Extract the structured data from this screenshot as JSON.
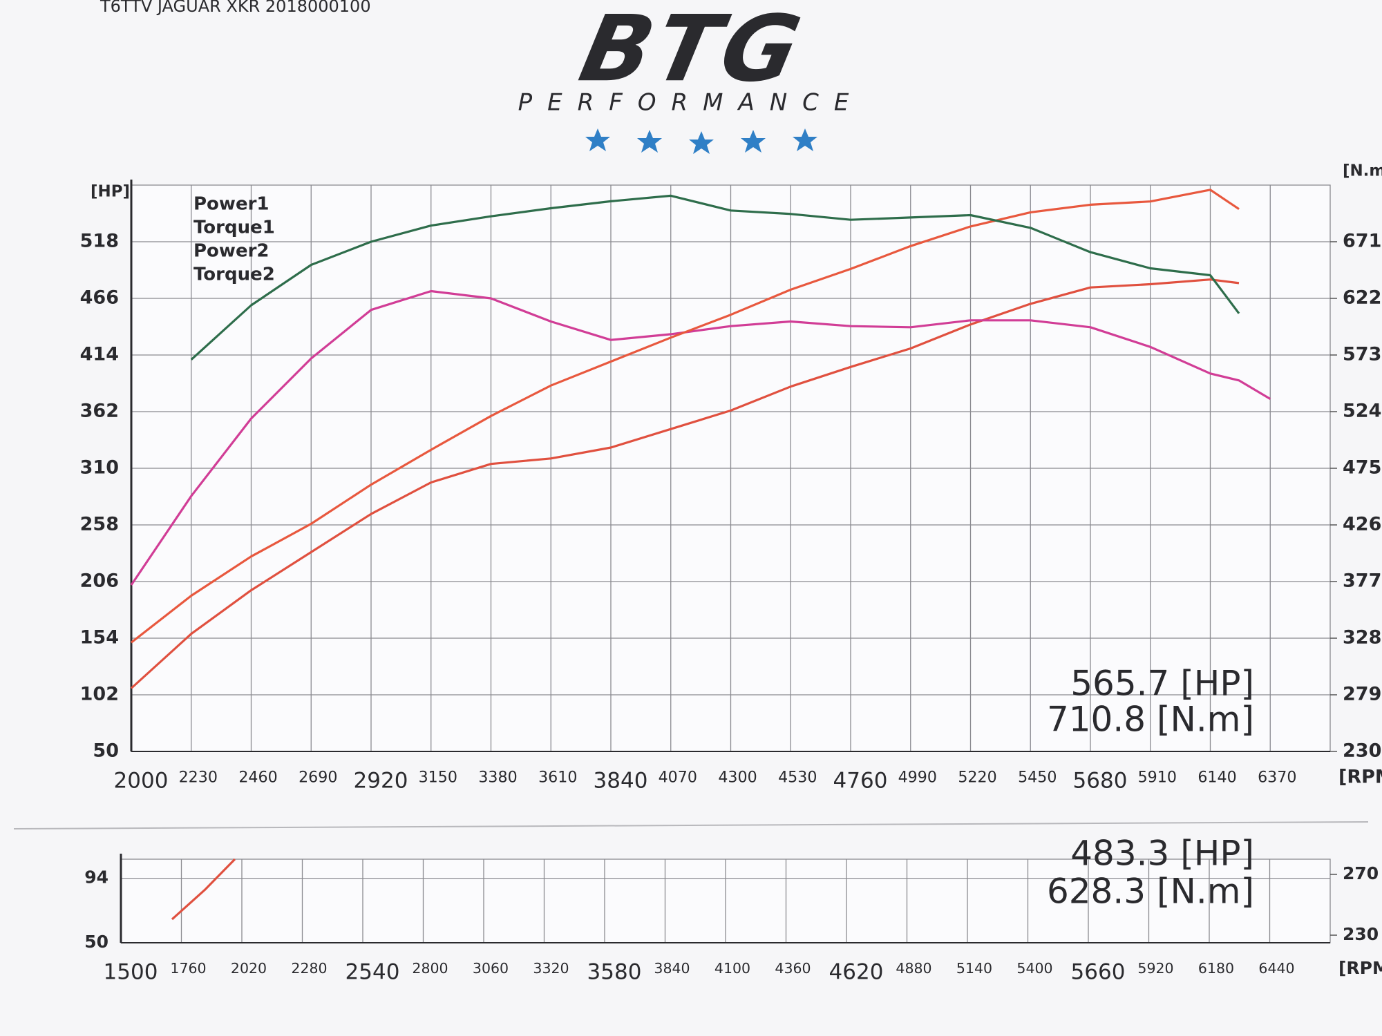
{
  "header": {
    "note": "T6TTV JAGUAR XKR 2018000100"
  },
  "logo": {
    "text": "BTG",
    "subtitle": "PERFORMANCE"
  },
  "chart_data": [
    {
      "type": "line",
      "ylabel": "[HP]",
      "y2label": "[N.m]",
      "xlabel": "[RPM]",
      "x": [
        2000,
        2230,
        2460,
        2690,
        2920,
        3150,
        3380,
        3610,
        3840,
        4070,
        4300,
        4530,
        4760,
        4990,
        5220,
        5450,
        5680,
        5910,
        6140,
        6250,
        6370
      ],
      "xlim": [
        2000,
        6600
      ],
      "xticks": [
        2000,
        2230,
        2460,
        2690,
        2920,
        3150,
        3380,
        3610,
        3840,
        4070,
        4300,
        4530,
        4760,
        4990,
        5220,
        5450,
        5680,
        5910,
        6140,
        6370
      ],
      "ylim": [
        50,
        570
      ],
      "yticks": [
        50,
        102,
        154,
        206,
        258,
        310,
        362,
        414,
        466,
        518
      ],
      "y2lim": [
        230,
        720
      ],
      "y2ticks": [
        230,
        279,
        328,
        377,
        426,
        475,
        524,
        573,
        622,
        671
      ],
      "grid": true,
      "series": [
        {
          "name": "Power1",
          "color": "#e0503f",
          "values": [
            108,
            158,
            198,
            233,
            268,
            297,
            314,
            319,
            329,
            346,
            363,
            385,
            403,
            420,
            442,
            461,
            476,
            479,
            483.3,
            480,
            null
          ]
        },
        {
          "name": "Torque1",
          "color": "#d13d96",
          "axis": "y2",
          "values": [
            374,
            451,
            518,
            570,
            612,
            628.3,
            622,
            602,
            586,
            591,
            598,
            602,
            598,
            597,
            603,
            603,
            597,
            580,
            557,
            551,
            535
          ]
        },
        {
          "name": "Power2",
          "color": "#e8583e",
          "values": [
            150,
            193,
            229,
            259,
            295,
            327,
            358,
            386,
            408,
            430,
            451,
            474,
            493,
            514,
            532,
            545,
            552,
            555,
            565.7,
            548,
            null
          ]
        },
        {
          "name": "Torque2",
          "color": "#2e6d4b",
          "axis": "y2",
          "values": [
            null,
            569,
            616,
            651,
            671,
            685,
            693,
            700,
            706,
            710.8,
            698,
            695,
            690,
            692,
            694,
            683,
            662,
            648,
            642,
            609,
            null
          ]
        }
      ],
      "annotations": [
        "565.7 [HP]",
        "710.8 [N.m]"
      ]
    },
    {
      "type": "line",
      "xlabel": "[RPM]",
      "x": [
        1720,
        1860,
        1990
      ],
      "xlim": [
        1500,
        6700
      ],
      "xticks": [
        1500,
        1760,
        2020,
        2280,
        2540,
        2800,
        3060,
        3320,
        3580,
        3840,
        4100,
        4360,
        4620,
        4880,
        5140,
        5400,
        5660,
        5920,
        6180,
        6440
      ],
      "ylim": [
        50,
        107
      ],
      "yticks": [
        50,
        94
      ],
      "y2lim": [
        225,
        280
      ],
      "y2ticks": [
        230,
        270
      ],
      "grid": true,
      "series": [
        {
          "color": "#e0503f",
          "values": [
            66,
            86,
            107
          ]
        }
      ],
      "annotations": [
        "483.3 [HP]",
        "628.3 [N.m]"
      ]
    }
  ]
}
